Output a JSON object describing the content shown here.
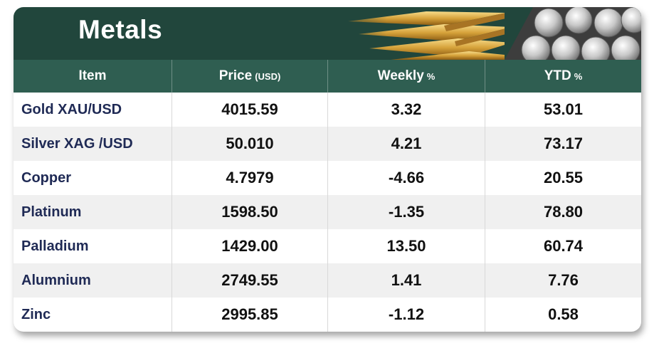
{
  "banner": {
    "title": "Metals",
    "images": [
      "gold-bars-image",
      "silver-coins-image"
    ]
  },
  "table": {
    "headers": [
      {
        "label": "Item",
        "unit": ""
      },
      {
        "label": "Price",
        "unit": "(USD)"
      },
      {
        "label": "Weekly",
        "unit": "%"
      },
      {
        "label": "YTD",
        "unit": "%"
      }
    ],
    "rows": [
      {
        "item": "Gold XAU/USD",
        "price": "4015.59",
        "weekly": "3.32",
        "ytd": "53.01"
      },
      {
        "item": "Silver XAG /USD",
        "price": "50.010",
        "weekly": "4.21",
        "ytd": "73.17"
      },
      {
        "item": "Copper",
        "price": "4.7979",
        "weekly": "-4.66",
        "ytd": "20.55"
      },
      {
        "item": "Platinum",
        "price": "1598.50",
        "weekly": "-1.35",
        "ytd": "78.80"
      },
      {
        "item": "Palladium",
        "price": "1429.00",
        "weekly": "13.50",
        "ytd": "60.74"
      },
      {
        "item": "Alumnium",
        "price": "2749.55",
        "weekly": "1.41",
        "ytd": "7.76"
      },
      {
        "item": "Zinc",
        "price": "2995.85",
        "weekly": "-1.12",
        "ytd": "0.58"
      }
    ]
  },
  "colors": {
    "banner_bg": "#21463c",
    "header_bg": "#2f5e51",
    "item_text": "#1f2a55",
    "value_text": "#111111",
    "alt_row": "#f0f0f0"
  }
}
